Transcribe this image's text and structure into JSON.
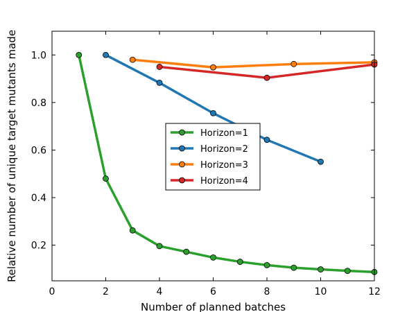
{
  "chart_data": {
    "type": "line",
    "title": "",
    "xlabel": "Number of planned batches",
    "ylabel": "Relative number of unique target mutants made",
    "xlim": [
      0,
      12
    ],
    "ylim": [
      0.05,
      1.1
    ],
    "xticks": [
      0,
      2,
      4,
      6,
      8,
      10,
      12
    ],
    "yticks": [
      0.2,
      0.4,
      0.6,
      0.8,
      1.0
    ],
    "ytick_labels": [
      "0.2",
      "0.4",
      "0.6",
      "0.8",
      "1.0"
    ],
    "grid": false,
    "legend_position": "center",
    "series": [
      {
        "name": "Horizon=1",
        "color": "#2ca02c",
        "x": [
          1,
          2,
          3,
          4,
          5,
          6,
          7,
          8,
          9,
          10,
          11,
          12
        ],
        "y": [
          1.0,
          0.48,
          0.262,
          0.196,
          0.172,
          0.148,
          0.13,
          0.116,
          0.105,
          0.098,
          0.092,
          0.087
        ]
      },
      {
        "name": "Horizon=2",
        "color": "#1f77b4",
        "x": [
          2,
          4,
          6,
          8,
          10
        ],
        "y": [
          1.0,
          0.883,
          0.755,
          0.643,
          0.551
        ]
      },
      {
        "name": "Horizon=3",
        "color": "#ff7f0e",
        "x": [
          3,
          6,
          9,
          12
        ],
        "y": [
          0.98,
          0.948,
          0.962,
          0.969
        ]
      },
      {
        "name": "Horizon=4",
        "color": "#d62728",
        "x": [
          4,
          8,
          12
        ],
        "y": [
          0.95,
          0.904,
          0.96
        ]
      }
    ]
  }
}
